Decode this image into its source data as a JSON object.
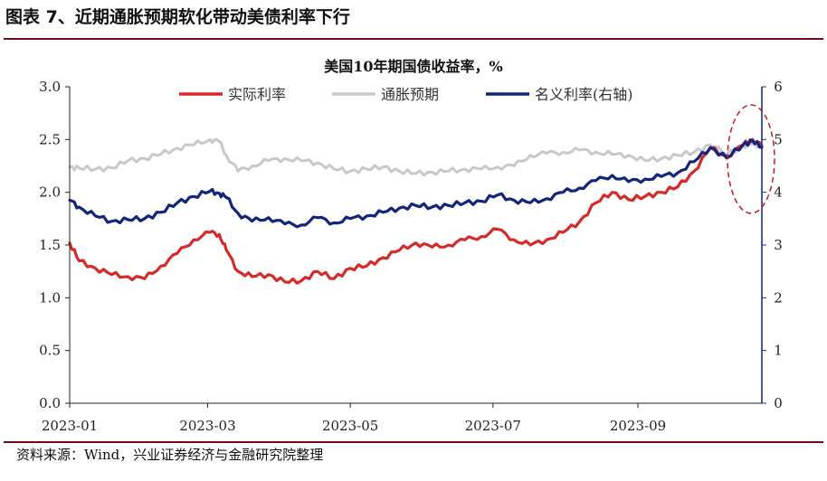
{
  "figure_title": "图表 7、近期通胀预期软化带动美债利率下行",
  "source": "资料来源：Wind，兴业证券经济与金融研究院整理",
  "colors": {
    "real_rate": "#d42a2a",
    "inflation_expectation": "#c8c8c8",
    "nominal_rate": "#12257a",
    "header_rule": "#6a0e1a",
    "highlight_ellipse": "#c21a1a"
  },
  "chart_data": {
    "type": "line",
    "title": "美国10年期国债收益率，%",
    "x_tick_labels": [
      "2023-01",
      "2023-03",
      "2023-05",
      "2023-07",
      "2023-09"
    ],
    "x_ticks": [
      "2023-01-01",
      "2023-03-01",
      "2023-05-01",
      "2023-07-01",
      "2023-09-01"
    ],
    "xlim": [
      "2023-01-01",
      "2023-10-24"
    ],
    "ylim_left": [
      0,
      3
    ],
    "y_left_ticks": [
      "0.0",
      "0.5",
      "1.0",
      "1.5",
      "2.0",
      "2.5",
      "3.0"
    ],
    "ylim_right": [
      0,
      6
    ],
    "y_right_ticks": [
      "0",
      "1",
      "2",
      "3",
      "4",
      "5",
      "6"
    ],
    "legend_position": "top-center",
    "grid": false,
    "annotation": "dashed-ellipse around latest values (Oct 2023)",
    "series": [
      {
        "name": "实际利率",
        "axis": "left",
        "color": "#d42a2a",
        "points": [
          [
            "2023-01-01",
            1.52
          ],
          [
            "2023-01-05",
            1.35
          ],
          [
            "2023-01-12",
            1.28
          ],
          [
            "2023-01-19",
            1.22
          ],
          [
            "2023-01-26",
            1.2
          ],
          [
            "2023-02-02",
            1.18
          ],
          [
            "2023-02-09",
            1.3
          ],
          [
            "2023-02-16",
            1.42
          ],
          [
            "2023-02-23",
            1.55
          ],
          [
            "2023-03-02",
            1.62
          ],
          [
            "2023-03-06",
            1.6
          ],
          [
            "2023-03-09",
            1.45
          ],
          [
            "2023-03-14",
            1.25
          ],
          [
            "2023-03-20",
            1.2
          ],
          [
            "2023-03-27",
            1.22
          ],
          [
            "2023-04-03",
            1.15
          ],
          [
            "2023-04-10",
            1.16
          ],
          [
            "2023-04-17",
            1.25
          ],
          [
            "2023-04-24",
            1.18
          ],
          [
            "2023-05-01",
            1.28
          ],
          [
            "2023-05-08",
            1.3
          ],
          [
            "2023-05-15",
            1.38
          ],
          [
            "2023-05-22",
            1.45
          ],
          [
            "2023-05-29",
            1.52
          ],
          [
            "2023-06-05",
            1.48
          ],
          [
            "2023-06-12",
            1.5
          ],
          [
            "2023-06-19",
            1.55
          ],
          [
            "2023-06-26",
            1.58
          ],
          [
            "2023-07-03",
            1.65
          ],
          [
            "2023-07-10",
            1.55
          ],
          [
            "2023-07-17",
            1.5
          ],
          [
            "2023-07-24",
            1.55
          ],
          [
            "2023-07-31",
            1.62
          ],
          [
            "2023-08-07",
            1.72
          ],
          [
            "2023-08-14",
            1.9
          ],
          [
            "2023-08-21",
            2.0
          ],
          [
            "2023-08-28",
            1.93
          ],
          [
            "2023-09-04",
            1.96
          ],
          [
            "2023-09-11",
            2.0
          ],
          [
            "2023-09-18",
            2.05
          ],
          [
            "2023-09-25",
            2.2
          ],
          [
            "2023-10-02",
            2.42
          ],
          [
            "2023-10-09",
            2.34
          ],
          [
            "2023-10-16",
            2.45
          ],
          [
            "2023-10-20",
            2.5
          ],
          [
            "2023-10-24",
            2.44
          ]
        ]
      },
      {
        "name": "通胀预期",
        "axis": "left",
        "color": "#c8c8c8",
        "points": [
          [
            "2023-01-01",
            2.24
          ],
          [
            "2023-01-05",
            2.23
          ],
          [
            "2023-01-12",
            2.22
          ],
          [
            "2023-01-19",
            2.23
          ],
          [
            "2023-01-26",
            2.3
          ],
          [
            "2023-02-02",
            2.32
          ],
          [
            "2023-02-09",
            2.36
          ],
          [
            "2023-02-16",
            2.42
          ],
          [
            "2023-02-23",
            2.45
          ],
          [
            "2023-03-02",
            2.5
          ],
          [
            "2023-03-06",
            2.48
          ],
          [
            "2023-03-09",
            2.35
          ],
          [
            "2023-03-14",
            2.2
          ],
          [
            "2023-03-20",
            2.25
          ],
          [
            "2023-03-27",
            2.3
          ],
          [
            "2023-04-03",
            2.32
          ],
          [
            "2023-04-10",
            2.3
          ],
          [
            "2023-04-17",
            2.28
          ],
          [
            "2023-04-24",
            2.22
          ],
          [
            "2023-05-01",
            2.2
          ],
          [
            "2023-05-08",
            2.22
          ],
          [
            "2023-05-15",
            2.24
          ],
          [
            "2023-05-22",
            2.2
          ],
          [
            "2023-05-29",
            2.18
          ],
          [
            "2023-06-05",
            2.19
          ],
          [
            "2023-06-12",
            2.2
          ],
          [
            "2023-06-19",
            2.22
          ],
          [
            "2023-06-26",
            2.22
          ],
          [
            "2023-07-03",
            2.24
          ],
          [
            "2023-07-10",
            2.25
          ],
          [
            "2023-07-17",
            2.35
          ],
          [
            "2023-07-24",
            2.37
          ],
          [
            "2023-07-31",
            2.38
          ],
          [
            "2023-08-07",
            2.4
          ],
          [
            "2023-08-14",
            2.38
          ],
          [
            "2023-08-21",
            2.36
          ],
          [
            "2023-08-28",
            2.35
          ],
          [
            "2023-09-04",
            2.3
          ],
          [
            "2023-09-11",
            2.32
          ],
          [
            "2023-09-18",
            2.35
          ],
          [
            "2023-09-25",
            2.38
          ],
          [
            "2023-10-02",
            2.45
          ],
          [
            "2023-10-09",
            2.36
          ],
          [
            "2023-10-16",
            2.44
          ],
          [
            "2023-10-20",
            2.46
          ],
          [
            "2023-10-24",
            2.43
          ]
        ]
      },
      {
        "name": "名义利率(右轴)",
        "axis": "right",
        "color": "#12257a",
        "points": [
          [
            "2023-01-01",
            3.85
          ],
          [
            "2023-01-05",
            3.72
          ],
          [
            "2023-01-12",
            3.55
          ],
          [
            "2023-01-19",
            3.45
          ],
          [
            "2023-01-26",
            3.48
          ],
          [
            "2023-02-02",
            3.5
          ],
          [
            "2023-02-09",
            3.62
          ],
          [
            "2023-02-16",
            3.8
          ],
          [
            "2023-02-23",
            3.92
          ],
          [
            "2023-03-02",
            4.02
          ],
          [
            "2023-03-06",
            3.98
          ],
          [
            "2023-03-09",
            3.9
          ],
          [
            "2023-03-14",
            3.6
          ],
          [
            "2023-03-20",
            3.45
          ],
          [
            "2023-03-27",
            3.52
          ],
          [
            "2023-04-03",
            3.4
          ],
          [
            "2023-04-10",
            3.38
          ],
          [
            "2023-04-17",
            3.52
          ],
          [
            "2023-04-24",
            3.42
          ],
          [
            "2023-05-01",
            3.5
          ],
          [
            "2023-05-08",
            3.55
          ],
          [
            "2023-05-15",
            3.62
          ],
          [
            "2023-05-22",
            3.7
          ],
          [
            "2023-05-29",
            3.75
          ],
          [
            "2023-06-05",
            3.72
          ],
          [
            "2023-06-12",
            3.75
          ],
          [
            "2023-06-19",
            3.8
          ],
          [
            "2023-06-26",
            3.83
          ],
          [
            "2023-07-03",
            3.95
          ],
          [
            "2023-07-10",
            3.85
          ],
          [
            "2023-07-17",
            3.8
          ],
          [
            "2023-07-24",
            3.88
          ],
          [
            "2023-07-31",
            4.0
          ],
          [
            "2023-08-07",
            4.08
          ],
          [
            "2023-08-14",
            4.22
          ],
          [
            "2023-08-21",
            4.32
          ],
          [
            "2023-08-28",
            4.2
          ],
          [
            "2023-09-04",
            4.25
          ],
          [
            "2023-09-11",
            4.3
          ],
          [
            "2023-09-18",
            4.37
          ],
          [
            "2023-09-25",
            4.58
          ],
          [
            "2023-10-02",
            4.85
          ],
          [
            "2023-10-09",
            4.65
          ],
          [
            "2023-10-16",
            4.9
          ],
          [
            "2023-10-20",
            4.98
          ],
          [
            "2023-10-24",
            4.85
          ]
        ]
      }
    ]
  }
}
